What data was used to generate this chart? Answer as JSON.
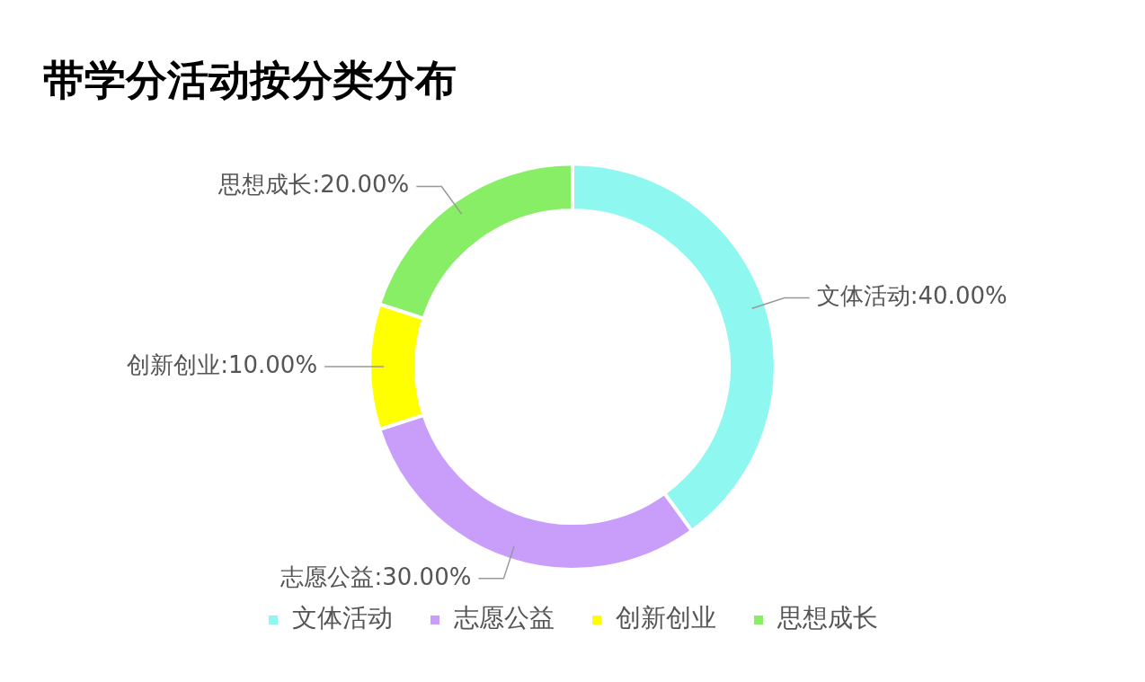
{
  "chart_data": {
    "type": "donut",
    "title": "带学分活动按分类分布",
    "categories": [
      "文体活动",
      "志愿公益",
      "创新创业",
      "思想成长"
    ],
    "values": [
      40,
      30,
      10,
      20
    ],
    "value_labels": [
      ":40.00%",
      ":30.00%",
      ":10.00%",
      ":20.00%"
    ],
    "colors": [
      "#8ef7f0",
      "#c89efa",
      "#ffff00",
      "#88ee66"
    ],
    "legend": "bottom"
  }
}
